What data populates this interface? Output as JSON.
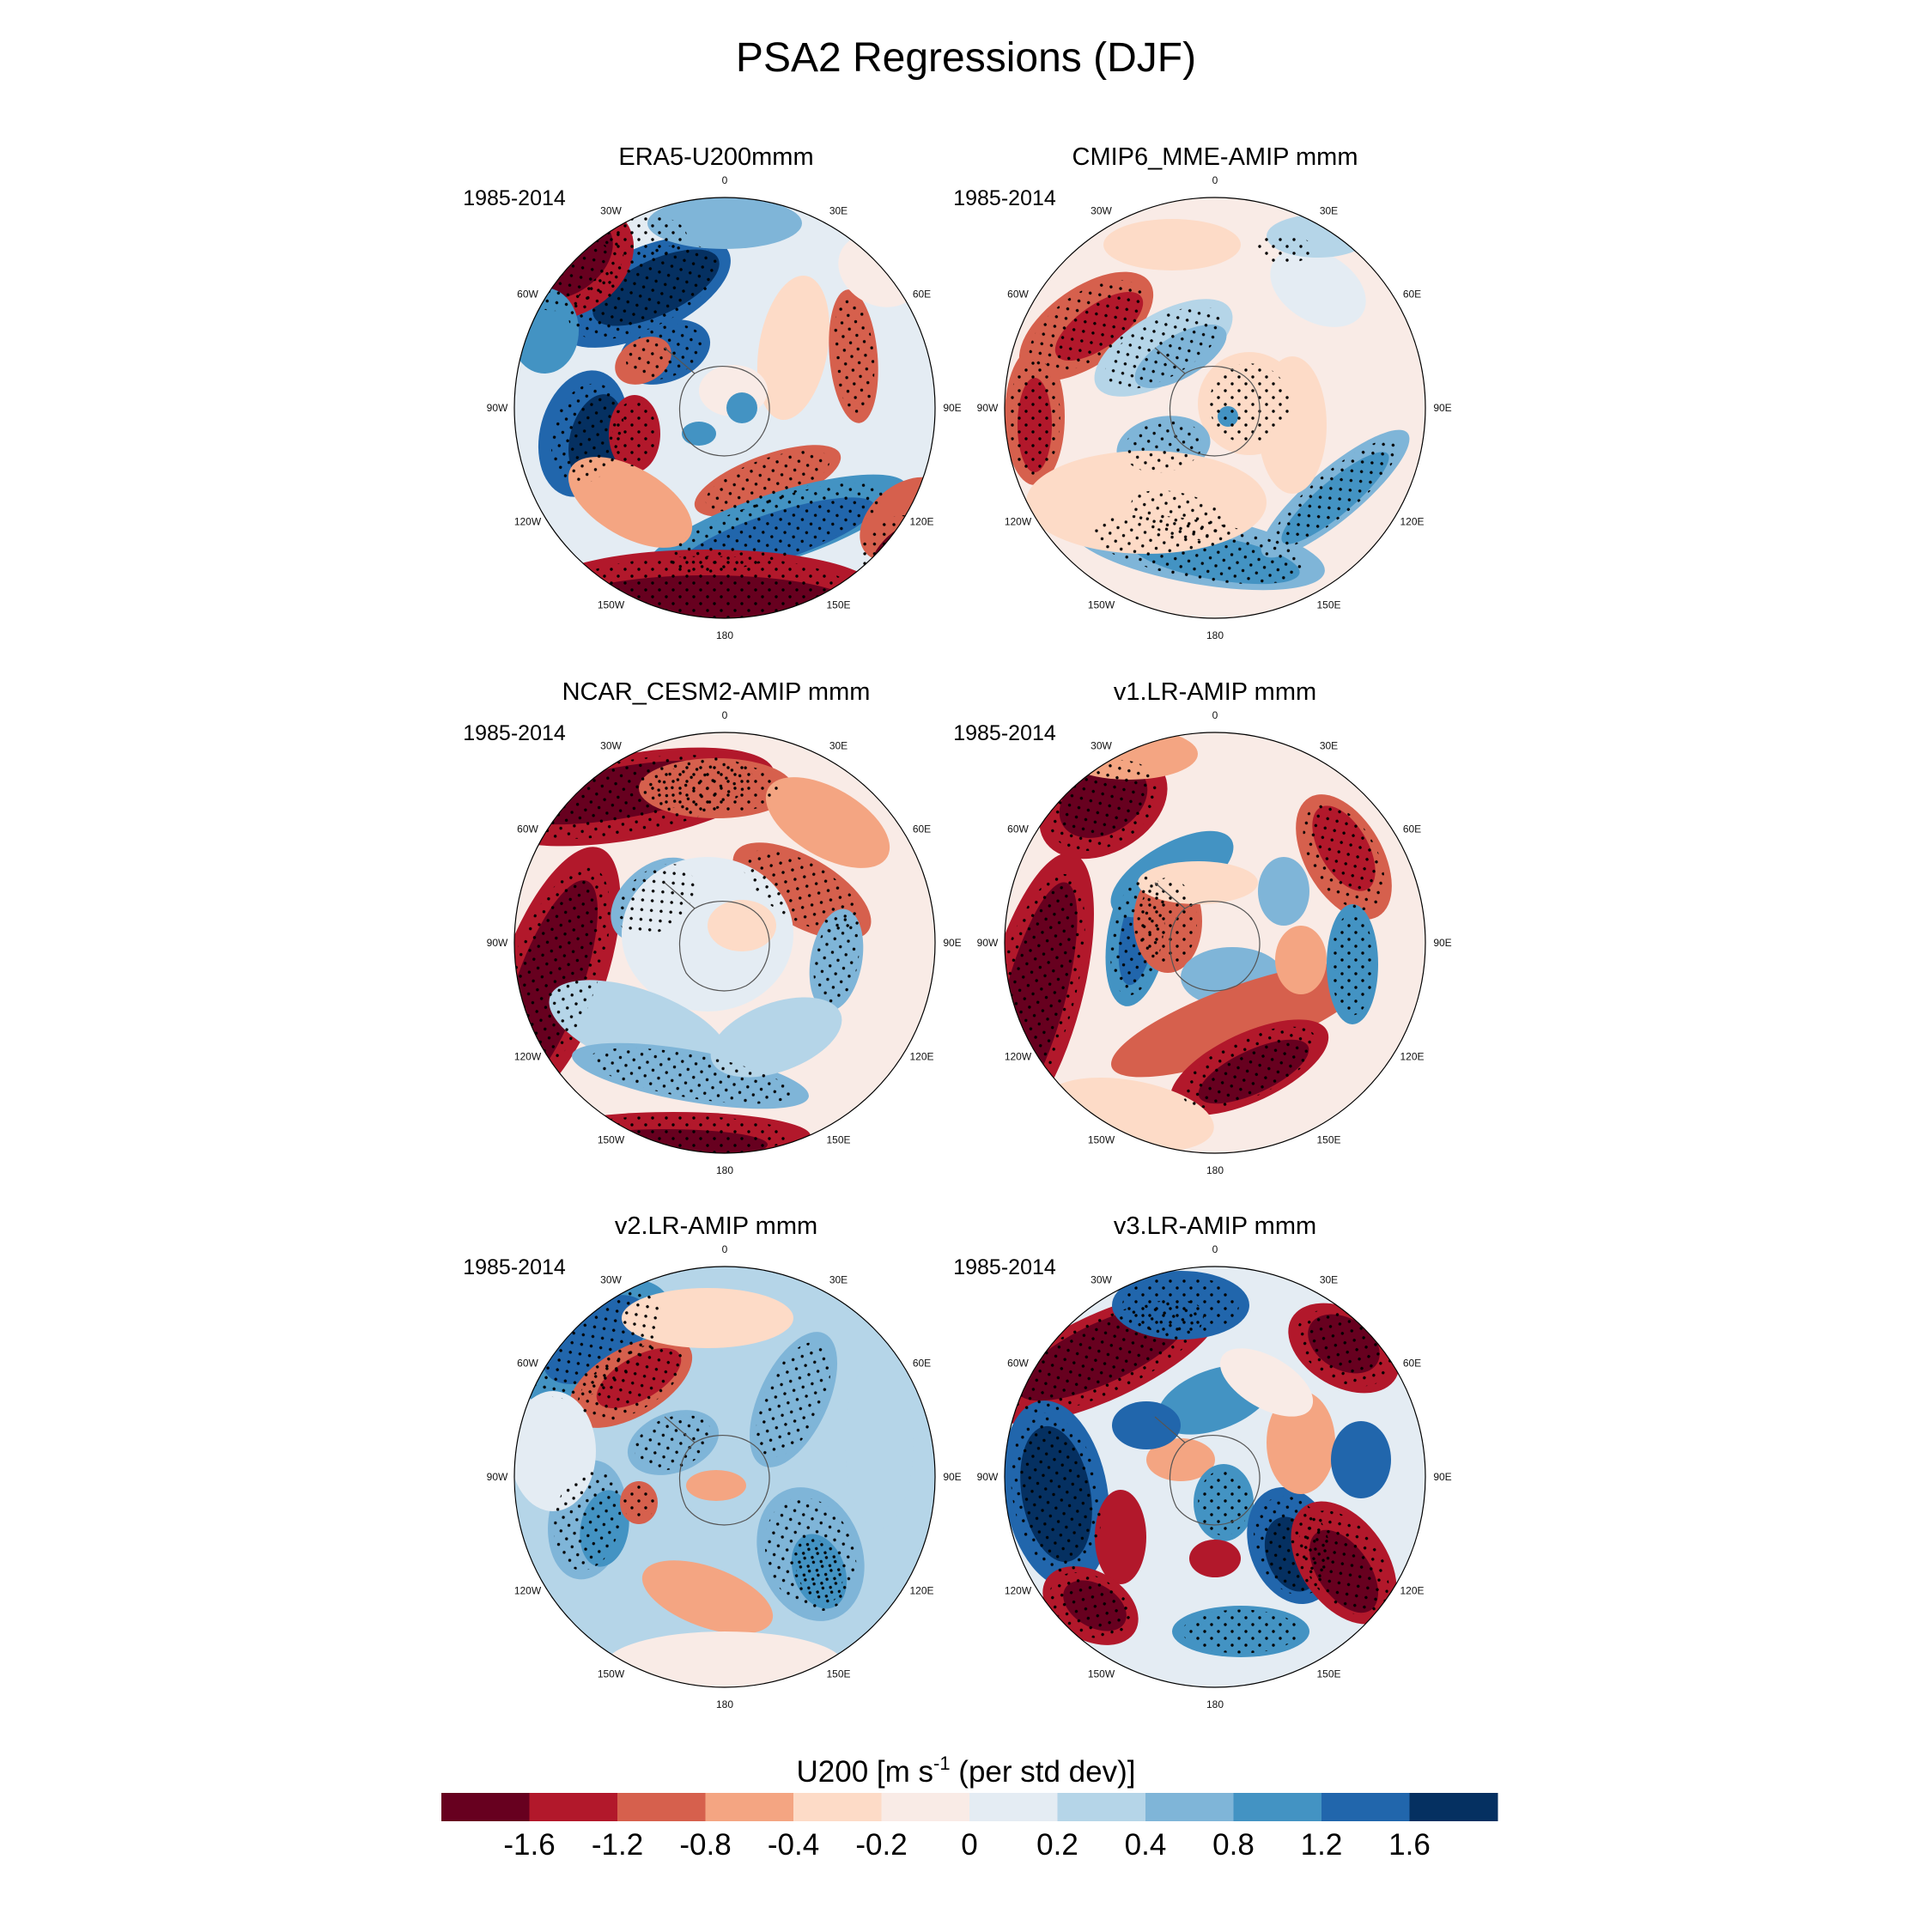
{
  "figure_title": "PSA2 Regressions (DJF)",
  "chart_data": {
    "type": "heatmap",
    "projection": "south polar stereographic",
    "variable": "U200",
    "panels": [
      {
        "title": "ERA5-U200mmm",
        "period": "1985-2014"
      },
      {
        "title": "CMIP6_MME-AMIP  mmm",
        "period": "1985-2014"
      },
      {
        "title": "NCAR_CESM2-AMIP  mmm",
        "period": "1985-2014"
      },
      {
        "title": "v1.LR-AMIP  mmm",
        "period": "1985-2014"
      },
      {
        "title": "v2.LR-AMIP  mmm",
        "period": "1985-2014"
      },
      {
        "title": "v3.LR-AMIP  mmm",
        "period": "1985-2014"
      }
    ],
    "longitude_labels": [
      "0",
      "30E",
      "60E",
      "90E",
      "120E",
      "150E",
      "180",
      "150W",
      "120W",
      "90W",
      "60W",
      "30W"
    ],
    "colorbar": {
      "label_prefix": "U200 [m s",
      "label_sup": "-1",
      "label_suffix": " (per std dev)]",
      "levels": [
        "-1.6",
        "-1.2",
        "-0.8",
        "-0.4",
        "-0.2",
        "0",
        "0.2",
        "0.4",
        "0.8",
        "1.2",
        "1.6"
      ],
      "colors": [
        "#67001f",
        "#b2182b",
        "#d6604d",
        "#f4a582",
        "#fddbc7",
        "#f9ebe6",
        "#e4ecf3",
        "#b5d5e8",
        "#7fb5d8",
        "#4393c3",
        "#2166ac",
        "#053061"
      ]
    }
  }
}
